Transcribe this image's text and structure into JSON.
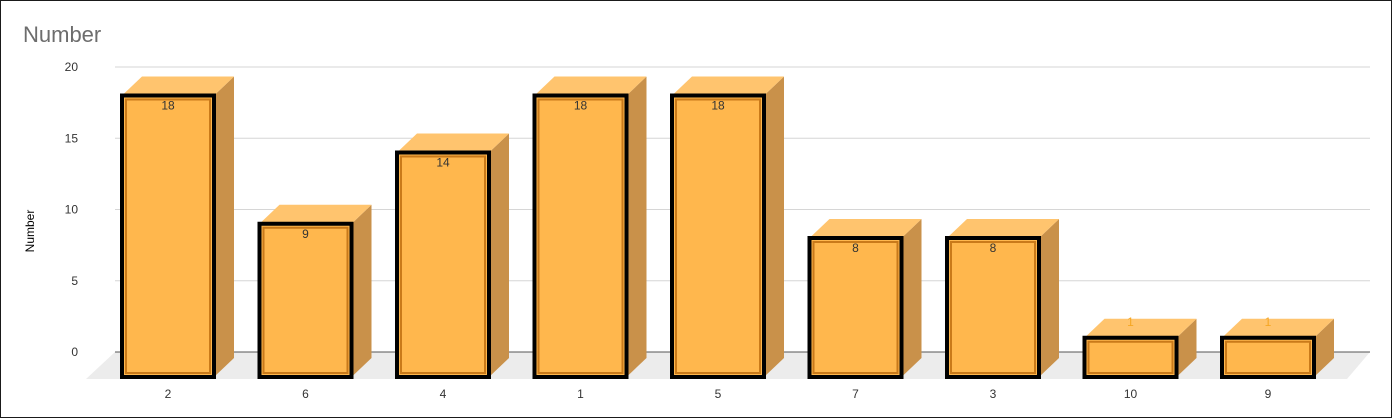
{
  "chart_data": {
    "type": "bar",
    "title": "Number",
    "ylabel": "Number",
    "xlabel": "",
    "categories": [
      "2",
      "6",
      "4",
      "1",
      "5",
      "7",
      "3",
      "10",
      "9"
    ],
    "values": [
      18,
      9,
      14,
      18,
      18,
      8,
      8,
      1,
      1
    ],
    "yticks": [
      "20",
      "15",
      "10",
      "5",
      "0"
    ],
    "ylim": [
      0,
      20
    ],
    "grid": true,
    "style": "3d-column",
    "colors": {
      "bar_front": "#ffb74d",
      "bar_top": "#ffc46e",
      "bar_side": "#c9914a",
      "bar_outline": "#000000",
      "floor": "#ececec",
      "gridline": "#d6d6d6",
      "small_label": "#f5a623"
    }
  }
}
